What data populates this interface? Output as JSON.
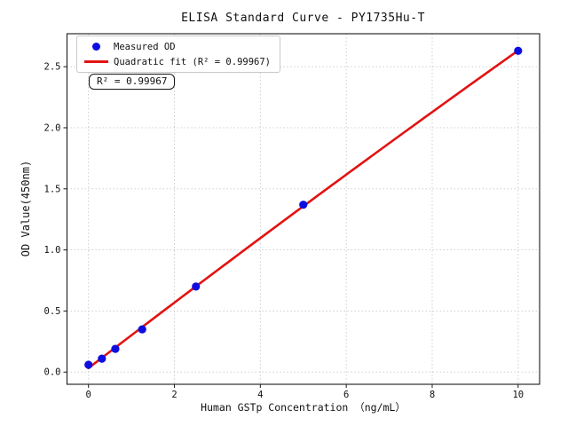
{
  "chart_data": {
    "type": "scatter",
    "title": "ELISA Standard Curve - PY1735Hu-T",
    "xlabel": "Human GSTp Concentration （ng/mL）",
    "ylabel": "OD Value(450nm)",
    "xlim": [
      -0.5,
      10.5
    ],
    "ylim": [
      -0.1,
      2.77
    ],
    "xticks": [
      0,
      2,
      4,
      6,
      8,
      10
    ],
    "xticklabels": [
      "0",
      "2",
      "4",
      "6",
      "8",
      "10"
    ],
    "yticks": [
      0.0,
      0.5,
      1.0,
      1.5,
      2.0,
      2.5
    ],
    "yticklabels": [
      "0.0",
      "0.5",
      "1.0",
      "1.5",
      "2.0",
      "2.5"
    ],
    "grid": true,
    "grid_style": "dotted",
    "legend_position": "upper-left",
    "annotation": "R² = 0.99967",
    "r_squared": 0.99967,
    "series": [
      {
        "name": "Measured OD",
        "type": "scatter",
        "color": "#0d0de0",
        "x": [
          0,
          0.3125,
          0.625,
          1.25,
          2.5,
          5,
          10
        ],
        "y": [
          0.06,
          0.11,
          0.19,
          0.35,
          0.7,
          1.37,
          2.63
        ]
      },
      {
        "name": "Quadratic fit (R² = 0.99967)",
        "type": "line",
        "fit": "quadratic",
        "color": "#e31212",
        "x_range": [
          0,
          10
        ]
      }
    ]
  },
  "style": {
    "grid_color": "#c9c9c9",
    "spine_color": "#1a1a1a",
    "tick_text_color": "#111111",
    "background": "#ffffff",
    "marker_radius": 4.6,
    "line_width": 2.6
  }
}
